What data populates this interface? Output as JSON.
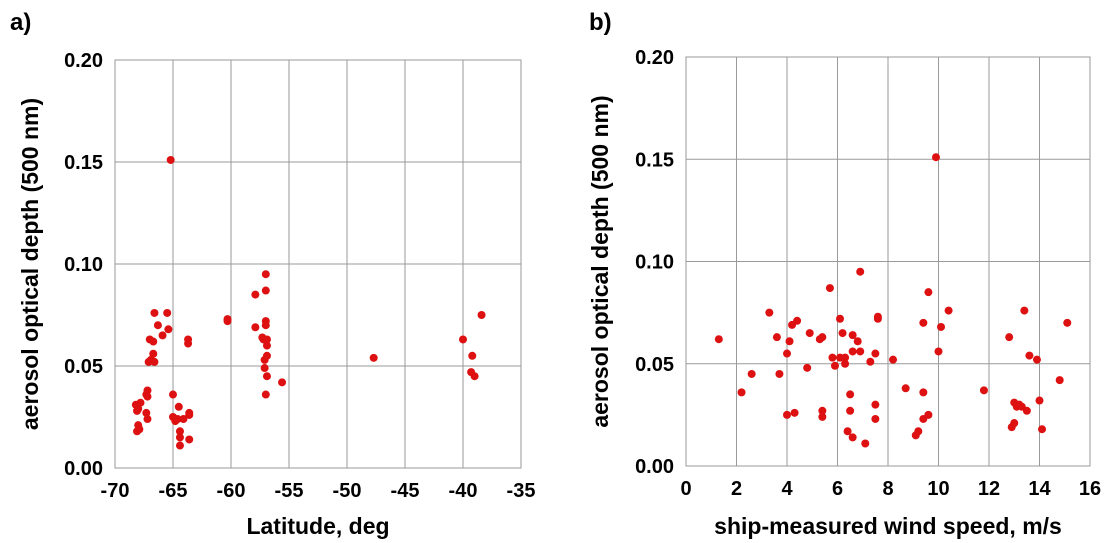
{
  "chart_data": [
    {
      "type": "scatter",
      "panel_label": "a)",
      "xlabel": "Latitude, deg",
      "ylabel": "aerosol optical depth (500 nm)",
      "xlim": [
        -70,
        -35
      ],
      "ylim": [
        0,
        0.2
      ],
      "x_ticks": [
        "-70",
        "-65",
        "-60",
        "-55",
        "-50",
        "-45",
        "-40",
        "-35"
      ],
      "y_ticks": [
        "0.00",
        "0.05",
        "0.10",
        "0.15",
        "0.20"
      ],
      "grid": true,
      "marker_color": "#dd1111",
      "points": [
        [
          -68.2,
          0.031
        ],
        [
          -68.1,
          0.028
        ],
        [
          -68.0,
          0.029
        ],
        [
          -68.0,
          0.021
        ],
        [
          -68.1,
          0.018
        ],
        [
          -67.9,
          0.019
        ],
        [
          -67.8,
          0.032
        ],
        [
          -67.2,
          0.038
        ],
        [
          -67.3,
          0.036
        ],
        [
          -67.2,
          0.035
        ],
        [
          -67.3,
          0.027
        ],
        [
          -67.2,
          0.024
        ],
        [
          -67.1,
          0.052
        ],
        [
          -67.0,
          0.063
        ],
        [
          -66.9,
          0.053
        ],
        [
          -66.7,
          0.062
        ],
        [
          -66.7,
          0.056
        ],
        [
          -66.6,
          0.052
        ],
        [
          -66.6,
          0.076
        ],
        [
          -66.3,
          0.07
        ],
        [
          -65.9,
          0.065
        ],
        [
          -65.5,
          0.076
        ],
        [
          -65.4,
          0.068
        ],
        [
          -65.2,
          0.151
        ],
        [
          -65.0,
          0.036
        ],
        [
          -65.0,
          0.025
        ],
        [
          -64.8,
          0.023
        ],
        [
          -64.6,
          0.024
        ],
        [
          -64.5,
          0.03
        ],
        [
          -64.4,
          0.018
        ],
        [
          -64.4,
          0.015
        ],
        [
          -64.4,
          0.011
        ],
        [
          -64.1,
          0.024
        ],
        [
          -63.7,
          0.063
        ],
        [
          -63.7,
          0.061
        ],
        [
          -63.6,
          0.027
        ],
        [
          -63.6,
          0.026
        ],
        [
          -63.6,
          0.014
        ],
        [
          -60.3,
          0.073
        ],
        [
          -60.3,
          0.072
        ],
        [
          -57.9,
          0.085
        ],
        [
          -57.9,
          0.069
        ],
        [
          -57.3,
          0.064
        ],
        [
          -57.2,
          0.063
        ],
        [
          -57.1,
          0.053
        ],
        [
          -57.1,
          0.049
        ],
        [
          -57.0,
          0.095
        ],
        [
          -57.0,
          0.087
        ],
        [
          -57.0,
          0.072
        ],
        [
          -57.0,
          0.07
        ],
        [
          -56.9,
          0.063
        ],
        [
          -56.9,
          0.06
        ],
        [
          -56.9,
          0.055
        ],
        [
          -56.9,
          0.045
        ],
        [
          -57.0,
          0.036
        ],
        [
          -55.6,
          0.042
        ],
        [
          -47.7,
          0.054
        ],
        [
          -40.0,
          0.063
        ],
        [
          -39.3,
          0.047
        ],
        [
          -39.2,
          0.055
        ],
        [
          -39.0,
          0.045
        ],
        [
          -38.4,
          0.075
        ]
      ]
    },
    {
      "type": "scatter",
      "panel_label": "b)",
      "xlabel": "ship-measured wind speed, m/s",
      "ylabel": "aerosol optical depth (500 nm)",
      "xlim": [
        0,
        16
      ],
      "ylim": [
        0,
        0.2
      ],
      "x_ticks": [
        "0",
        "2",
        "4",
        "6",
        "8",
        "10",
        "12",
        "14",
        "16"
      ],
      "y_ticks": [
        "0.00",
        "0.05",
        "0.10",
        "0.15",
        "0.20"
      ],
      "grid": true,
      "marker_color": "#dd1111",
      "points": [
        [
          1.3,
          0.062
        ],
        [
          2.2,
          0.036
        ],
        [
          2.6,
          0.045
        ],
        [
          3.3,
          0.075
        ],
        [
          3.6,
          0.063
        ],
        [
          3.7,
          0.045
        ],
        [
          4.0,
          0.055
        ],
        [
          4.0,
          0.025
        ],
        [
          4.1,
          0.061
        ],
        [
          4.2,
          0.069
        ],
        [
          4.3,
          0.026
        ],
        [
          4.4,
          0.071
        ],
        [
          4.8,
          0.048
        ],
        [
          4.9,
          0.065
        ],
        [
          5.3,
          0.062
        ],
        [
          5.4,
          0.063
        ],
        [
          5.4,
          0.027
        ],
        [
          5.4,
          0.024
        ],
        [
          5.7,
          0.087
        ],
        [
          5.8,
          0.053
        ],
        [
          5.9,
          0.049
        ],
        [
          6.1,
          0.072
        ],
        [
          6.1,
          0.053
        ],
        [
          6.2,
          0.065
        ],
        [
          6.3,
          0.053
        ],
        [
          6.3,
          0.05
        ],
        [
          6.4,
          0.017
        ],
        [
          6.5,
          0.035
        ],
        [
          6.5,
          0.027
        ],
        [
          6.6,
          0.064
        ],
        [
          6.6,
          0.056
        ],
        [
          6.6,
          0.014
        ],
        [
          6.8,
          0.061
        ],
        [
          6.9,
          0.095
        ],
        [
          6.9,
          0.056
        ],
        [
          7.1,
          0.011
        ],
        [
          7.3,
          0.051
        ],
        [
          7.5,
          0.055
        ],
        [
          7.5,
          0.03
        ],
        [
          7.5,
          0.023
        ],
        [
          7.6,
          0.073
        ],
        [
          7.6,
          0.072
        ],
        [
          8.2,
          0.052
        ],
        [
          8.7,
          0.038
        ],
        [
          9.1,
          0.015
        ],
        [
          9.2,
          0.017
        ],
        [
          9.4,
          0.07
        ],
        [
          9.4,
          0.036
        ],
        [
          9.4,
          0.023
        ],
        [
          9.6,
          0.085
        ],
        [
          9.6,
          0.025
        ],
        [
          9.9,
          0.151
        ],
        [
          10.0,
          0.056
        ],
        [
          10.1,
          0.068
        ],
        [
          10.4,
          0.076
        ],
        [
          11.8,
          0.037
        ],
        [
          12.8,
          0.063
        ],
        [
          12.9,
          0.019
        ],
        [
          13.0,
          0.021
        ],
        [
          13.0,
          0.031
        ],
        [
          13.1,
          0.029
        ],
        [
          13.2,
          0.03
        ],
        [
          13.3,
          0.029
        ],
        [
          13.4,
          0.076
        ],
        [
          13.5,
          0.027
        ],
        [
          13.6,
          0.054
        ],
        [
          13.9,
          0.052
        ],
        [
          14.0,
          0.032
        ],
        [
          14.1,
          0.018
        ],
        [
          14.8,
          0.042
        ],
        [
          15.1,
          0.07
        ]
      ]
    }
  ]
}
